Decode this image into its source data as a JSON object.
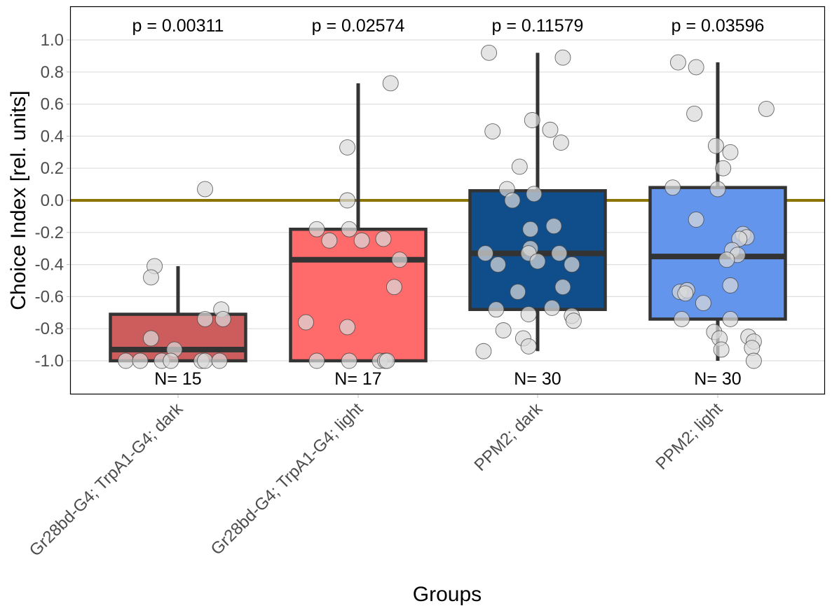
{
  "chart_data": {
    "type": "boxplot",
    "title": "",
    "xlabel": "Groups",
    "ylabel": "Choice Index [rel. units]",
    "ylim": [
      -1.2,
      1.22
    ],
    "yticks": [
      1.0,
      0.8,
      0.6,
      0.4,
      0.2,
      0.0,
      -0.2,
      -0.4,
      -0.6,
      -0.8,
      -1.0
    ],
    "ytick_labels": [
      "1.0",
      "0.8",
      "0.6",
      "0.4",
      "0.2",
      "0.0",
      "-0.2",
      "-0.4",
      "-0.6",
      "-0.8",
      "-1.0"
    ],
    "grid": "horizontal",
    "reference_line": {
      "y": 0.0,
      "color": "#8B7500"
    },
    "categories": [
      "Gr28bd-G4; TrpA1-G4; dark",
      "Gr28bd-G4; TrpA1-G4; light",
      "PPM2; dark",
      "PPM2; light"
    ],
    "groups": [
      {
        "name": "Gr28bd-G4; TrpA1-G4; dark",
        "color": "#CD5C5C",
        "p_label": "p = 0.00311",
        "n_label": "N= 15",
        "box": {
          "whisker_low": -1.0,
          "q1": -1.0,
          "median": -0.93,
          "q3": -0.71,
          "whisker_high": -0.41
        },
        "points": [
          {
            "j": 0.15,
            "y": 0.07
          },
          {
            "j": -0.13,
            "y": -0.41
          },
          {
            "j": -0.15,
            "y": -0.48
          },
          {
            "j": 0.24,
            "y": -0.68
          },
          {
            "j": 0.15,
            "y": -0.74
          },
          {
            "j": 0.25,
            "y": -0.74
          },
          {
            "j": -0.15,
            "y": -0.86
          },
          {
            "j": -0.02,
            "y": -0.93
          },
          {
            "j": -0.29,
            "y": -1.0
          },
          {
            "j": -0.21,
            "y": -1.0
          },
          {
            "j": -0.09,
            "y": -1.0
          },
          {
            "j": -0.04,
            "y": -1.0
          },
          {
            "j": 0.13,
            "y": -1.0
          },
          {
            "j": 0.15,
            "y": -1.0
          },
          {
            "j": 0.23,
            "y": -1.0
          }
        ]
      },
      {
        "name": "Gr28bd-G4; TrpA1-G4; light",
        "color": "#FF6A6A",
        "p_label": "p = 0.02574",
        "n_label": "N= 17",
        "box": {
          "whisker_low": -1.0,
          "q1": -1.0,
          "median": -0.37,
          "q3": -0.18,
          "whisker_high": 0.73
        },
        "points": [
          {
            "j": 0.18,
            "y": 0.73
          },
          {
            "j": -0.06,
            "y": 0.33
          },
          {
            "j": -0.06,
            "y": 0.0
          },
          {
            "j": -0.23,
            "y": -0.18
          },
          {
            "j": -0.05,
            "y": -0.18
          },
          {
            "j": -0.16,
            "y": -0.25
          },
          {
            "j": 0.02,
            "y": -0.25
          },
          {
            "j": 0.14,
            "y": -0.24
          },
          {
            "j": 0.23,
            "y": -0.37
          },
          {
            "j": 0.2,
            "y": -0.54
          },
          {
            "j": -0.29,
            "y": -0.76
          },
          {
            "j": -0.06,
            "y": -0.79
          },
          {
            "j": -0.23,
            "y": -1.0
          },
          {
            "j": -0.05,
            "y": -1.0
          },
          {
            "j": 0.12,
            "y": -1.0
          },
          {
            "j": 0.15,
            "y": -1.0
          },
          {
            "j": 0.16,
            "y": -1.0
          }
        ]
      },
      {
        "name": "PPM2; dark",
        "color": "#104E8B",
        "p_label": "p = 0.11579",
        "n_label": "N= 30",
        "box": {
          "whisker_low": -0.94,
          "q1": -0.68,
          "median": -0.33,
          "q3": 0.06,
          "whisker_high": 0.92
        },
        "points": [
          {
            "j": -0.27,
            "y": 0.92
          },
          {
            "j": 0.14,
            "y": 0.89
          },
          {
            "j": -0.25,
            "y": 0.43
          },
          {
            "j": -0.03,
            "y": 0.5
          },
          {
            "j": 0.07,
            "y": 0.44
          },
          {
            "j": 0.13,
            "y": 0.36
          },
          {
            "j": -0.1,
            "y": 0.21
          },
          {
            "j": -0.17,
            "y": 0.07
          },
          {
            "j": -0.14,
            "y": 0.0
          },
          {
            "j": -0.02,
            "y": 0.04
          },
          {
            "j": -0.04,
            "y": -0.18
          },
          {
            "j": 0.09,
            "y": -0.16
          },
          {
            "j": -0.29,
            "y": -0.33
          },
          {
            "j": -0.04,
            "y": -0.3
          },
          {
            "j": -0.05,
            "y": -0.33
          },
          {
            "j": 0.12,
            "y": -0.33
          },
          {
            "j": -0.22,
            "y": -0.4
          },
          {
            "j": 0.0,
            "y": -0.38
          },
          {
            "j": 0.19,
            "y": -0.4
          },
          {
            "j": -0.11,
            "y": -0.57
          },
          {
            "j": 0.14,
            "y": -0.54
          },
          {
            "j": -0.23,
            "y": -0.68
          },
          {
            "j": -0.05,
            "y": -0.71
          },
          {
            "j": 0.08,
            "y": -0.67
          },
          {
            "j": 0.19,
            "y": -0.72
          },
          {
            "j": 0.2,
            "y": -0.75
          },
          {
            "j": -0.19,
            "y": -0.81
          },
          {
            "j": -0.08,
            "y": -0.86
          },
          {
            "j": -0.05,
            "y": -0.91
          },
          {
            "j": -0.3,
            "y": -0.94
          }
        ]
      },
      {
        "name": "PPM2; light",
        "color": "#6495ED",
        "p_label": "p = 0.03596",
        "n_label": "N= 30",
        "box": {
          "whisker_low": -1.0,
          "q1": -0.74,
          "median": -0.35,
          "q3": 0.08,
          "whisker_high": 0.86
        },
        "points": [
          {
            "j": -0.22,
            "y": 0.86
          },
          {
            "j": -0.12,
            "y": 0.83
          },
          {
            "j": -0.13,
            "y": 0.54
          },
          {
            "j": 0.27,
            "y": 0.57
          },
          {
            "j": -0.01,
            "y": 0.34
          },
          {
            "j": 0.07,
            "y": 0.3
          },
          {
            "j": 0.03,
            "y": 0.2
          },
          {
            "j": -0.25,
            "y": 0.08
          },
          {
            "j": 0.0,
            "y": 0.07
          },
          {
            "j": -0.12,
            "y": -0.12
          },
          {
            "j": 0.14,
            "y": -0.21
          },
          {
            "j": 0.16,
            "y": -0.23
          },
          {
            "j": 0.12,
            "y": -0.24
          },
          {
            "j": 0.08,
            "y": -0.31
          },
          {
            "j": 0.11,
            "y": -0.34
          },
          {
            "j": 0.05,
            "y": -0.37
          },
          {
            "j": -0.21,
            "y": -0.57
          },
          {
            "j": -0.17,
            "y": -0.56
          },
          {
            "j": -0.18,
            "y": -0.58
          },
          {
            "j": 0.07,
            "y": -0.53
          },
          {
            "j": -0.08,
            "y": -0.64
          },
          {
            "j": -0.2,
            "y": -0.74
          },
          {
            "j": 0.07,
            "y": -0.74
          },
          {
            "j": -0.02,
            "y": -0.82
          },
          {
            "j": 0.01,
            "y": -0.86
          },
          {
            "j": 0.17,
            "y": -0.85
          },
          {
            "j": 0.02,
            "y": -0.93
          },
          {
            "j": 0.2,
            "y": -0.88
          },
          {
            "j": 0.19,
            "y": -0.92
          },
          {
            "j": 0.2,
            "y": -1.0
          }
        ]
      }
    ]
  }
}
